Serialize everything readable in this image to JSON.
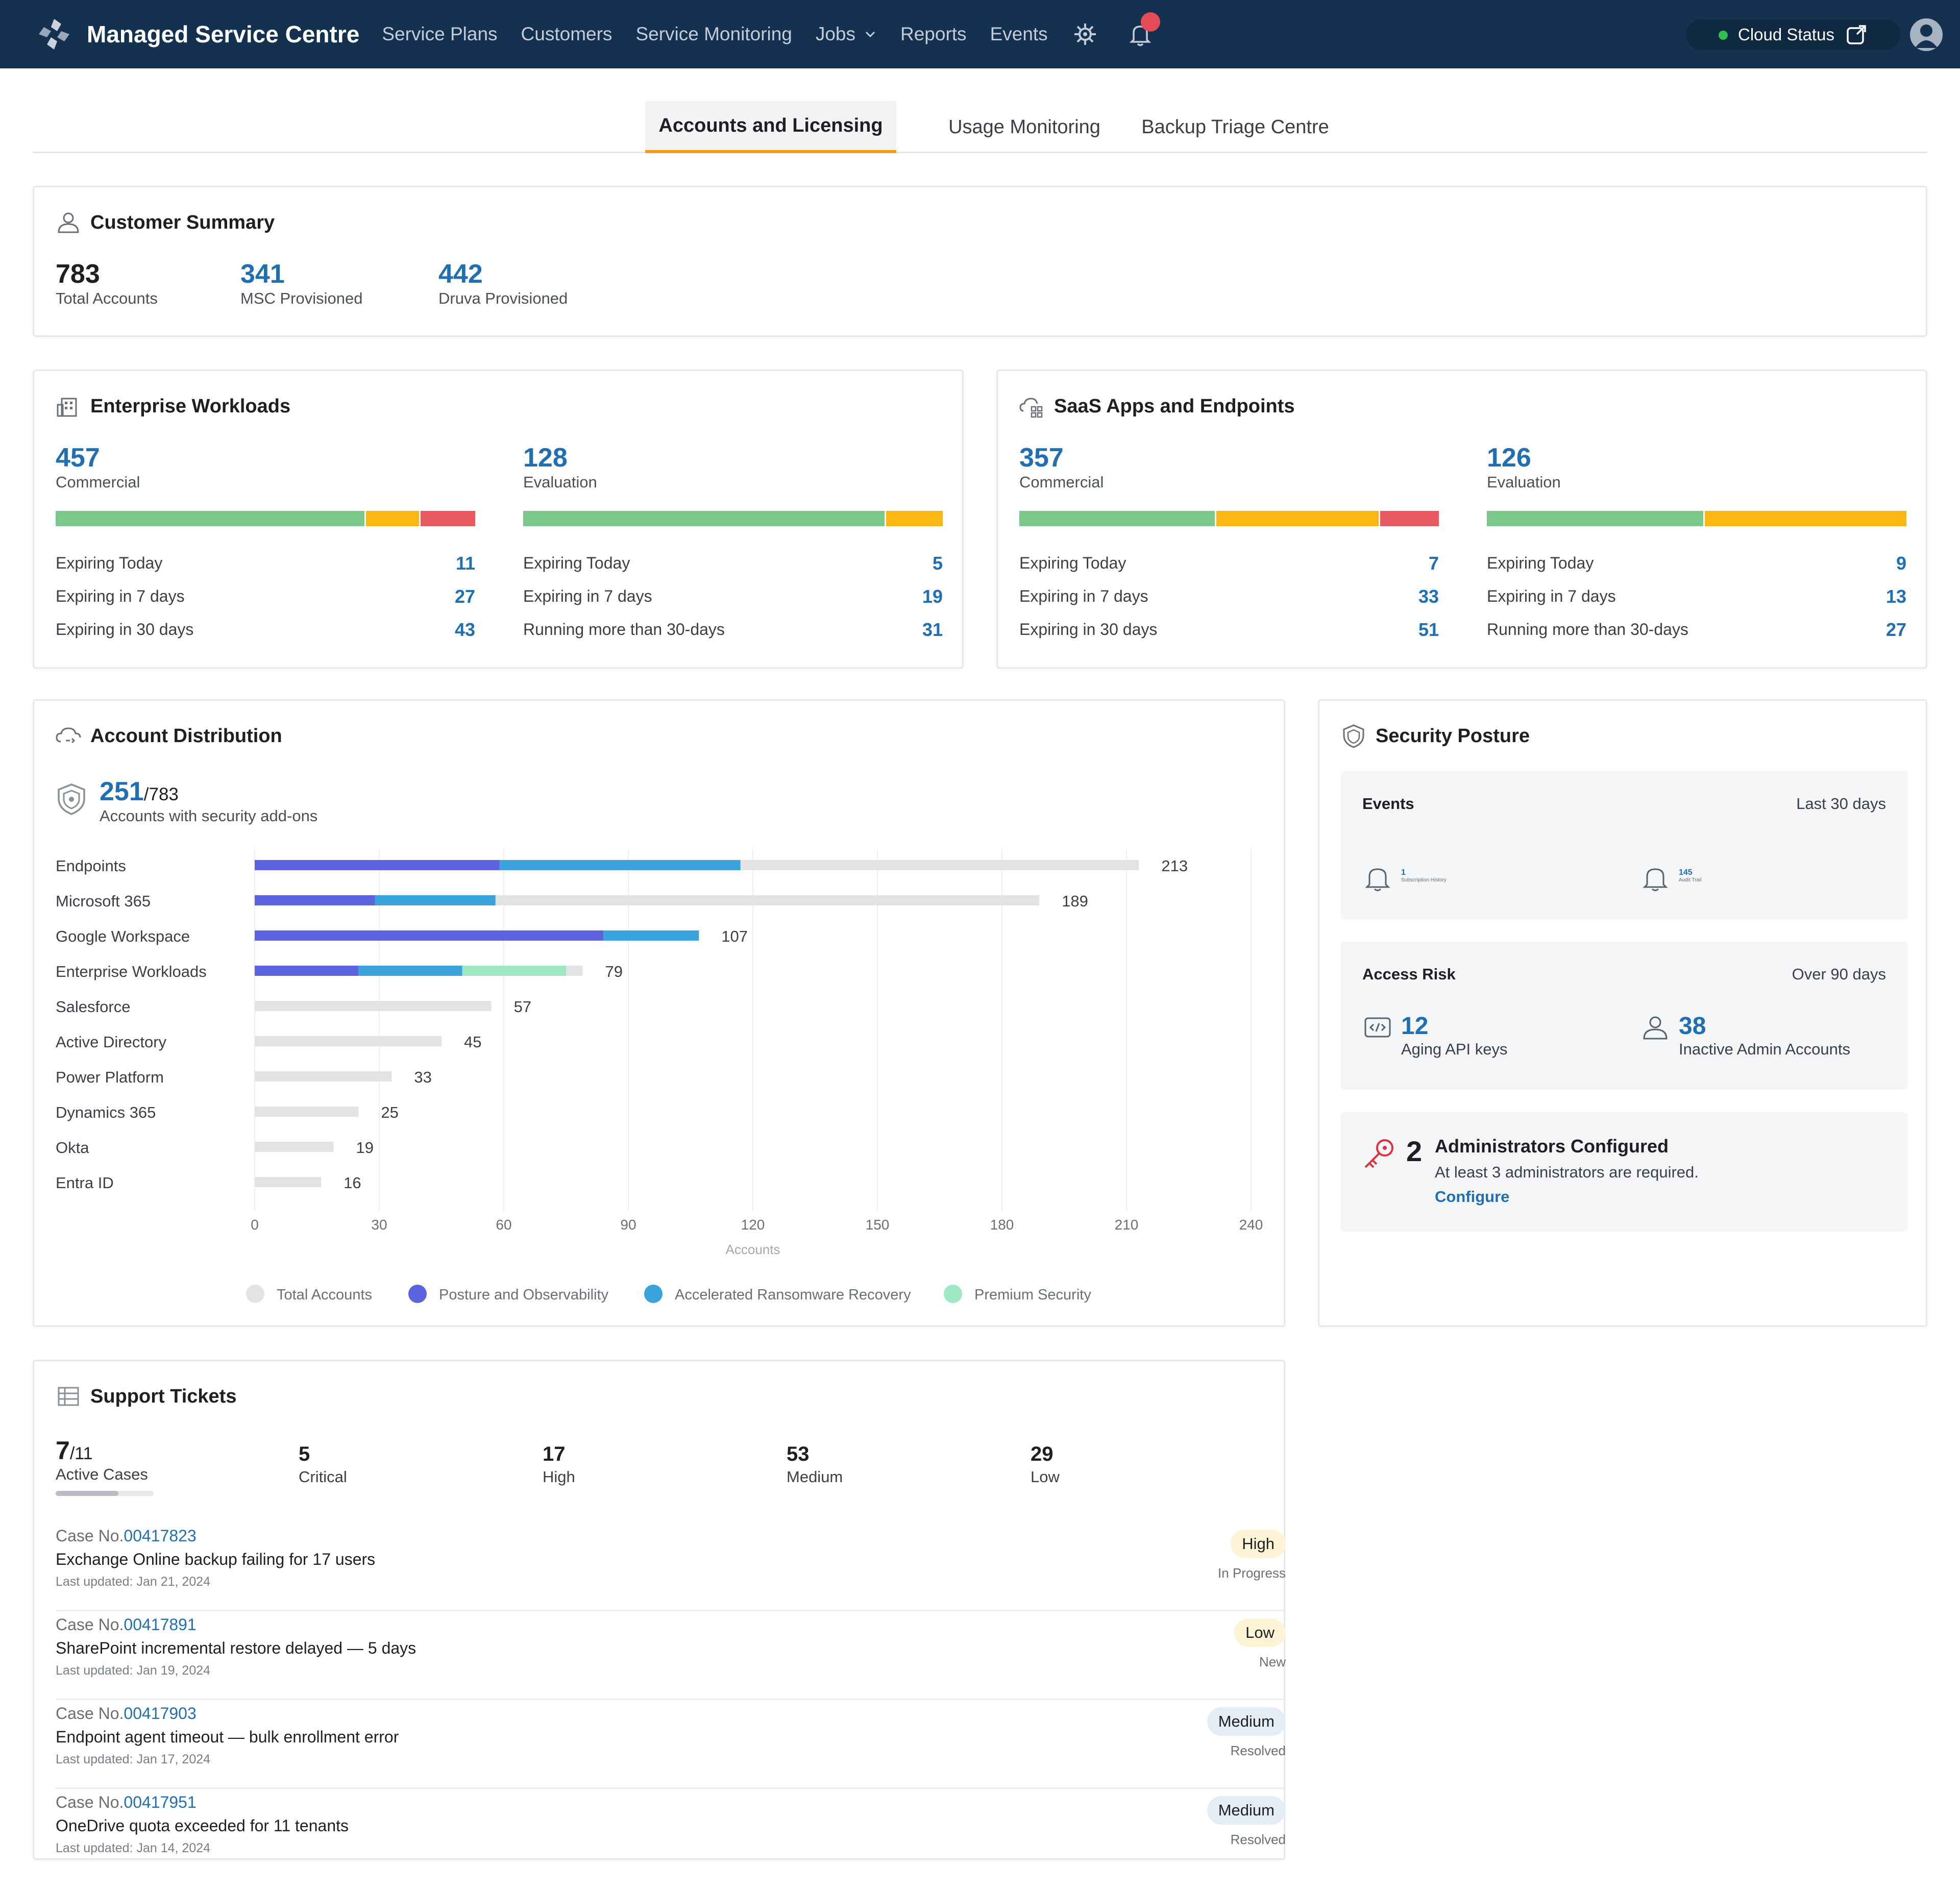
{
  "app": {
    "title": "Managed Service Centre",
    "nav": [
      "Service Plans",
      "Customers",
      "Service Monitoring",
      "Jobs",
      "Reports",
      "Events"
    ],
    "cloud_status": "Cloud Status",
    "notification_badge": true,
    "colors": {
      "topbar": "#14314f",
      "accent": "#f39b1b",
      "link": "#1f6fb2",
      "status_ok": "#2fbf4b",
      "badge": "#e44b56"
    },
    "icons": [
      "logo-icon",
      "chevron-down-icon",
      "gear-icon",
      "bell-icon",
      "external-link-icon",
      "user-avatar-icon"
    ]
  },
  "tabs": [
    {
      "label": "Accounts and Licensing",
      "active": true
    },
    {
      "label": "Usage Monitoring",
      "active": false
    },
    {
      "label": "Backup Triage Centre",
      "active": false
    }
  ],
  "customer_summary": {
    "title": "Customer Summary",
    "stats": [
      {
        "value": "783",
        "label": "Total Accounts"
      },
      {
        "value": "341",
        "label": "MSC Provisioned"
      },
      {
        "value": "442",
        "label": "Druva Provisioned"
      }
    ]
  },
  "enterprise_workloads": {
    "title": "Enterprise Workloads",
    "commercial": {
      "value": "457",
      "label": "Commercial",
      "bar_fractions": {
        "green": 0.74,
        "yellow": 0.13,
        "red": 0.13
      },
      "rows": [
        {
          "label": "Expiring Today",
          "value": "11"
        },
        {
          "label": "Expiring in 7 days",
          "value": "27"
        },
        {
          "label": "Expiring in 30 days",
          "value": "43"
        }
      ]
    },
    "evaluation": {
      "value": "128",
      "label": "Evaluation",
      "bar_fractions": {
        "green": 0.865,
        "yellow": 0.135,
        "red": 0
      },
      "rows": [
        {
          "label": "Expiring Today",
          "value": "5"
        },
        {
          "label": "Expiring in 7 days",
          "value": "19"
        },
        {
          "label": "Running more than 30-days",
          "value": "31"
        }
      ]
    }
  },
  "saas_apps": {
    "title": "SaaS Apps and Endpoints",
    "commercial": {
      "value": "357",
      "label": "Commercial",
      "bar_fractions": {
        "green": 0.47,
        "yellow": 0.39,
        "red": 0.14
      },
      "rows": [
        {
          "label": "Expiring Today",
          "value": "7"
        },
        {
          "label": "Expiring in 7 days",
          "value": "33"
        },
        {
          "label": "Expiring in 30 days",
          "value": "51"
        }
      ]
    },
    "evaluation": {
      "value": "126",
      "label": "Evaluation",
      "bar_fractions": {
        "green": 0.52,
        "yellow": 0.48,
        "red": 0
      },
      "rows": [
        {
          "label": "Expiring Today",
          "value": "9"
        },
        {
          "label": "Expiring in 7 days",
          "value": "13"
        },
        {
          "label": "Running more than 30-days",
          "value": "27"
        }
      ]
    }
  },
  "account_distribution": {
    "title": "Account Distribution",
    "security_addons": {
      "value": "251",
      "total": "/783",
      "label": "Accounts with security add-ons"
    }
  },
  "chart_data": {
    "type": "bar",
    "orientation": "horizontal",
    "categories": [
      "Endpoints",
      "Microsoft 365",
      "Google Workspace",
      "Enterprise Workloads",
      "Salesforce",
      "Active Directory",
      "Power Platform",
      "Dynamics 365",
      "Okta",
      "Entra ID"
    ],
    "series": [
      {
        "name": "Total Accounts",
        "color": "#e2e3e5",
        "values": [
          213,
          189,
          107,
          79,
          57,
          45,
          33,
          25,
          19,
          16
        ]
      },
      {
        "name": "Posture and Observability",
        "color": "#5b63df",
        "values": [
          59,
          29,
          84,
          25,
          0,
          0,
          0,
          0,
          0,
          0
        ]
      },
      {
        "name": "Accelerated Ransomware Recovery",
        "color": "#3aa3dc",
        "values": [
          58,
          29,
          23,
          25,
          0,
          0,
          0,
          0,
          0,
          0
        ]
      },
      {
        "name": "Premium Security",
        "color": "#9ee8c4",
        "values": [
          0,
          0,
          0,
          25,
          0,
          0,
          0,
          0,
          0,
          0
        ]
      }
    ],
    "total_labels": [
      "213",
      "189",
      "107",
      "79",
      "57",
      "45",
      "33",
      "25",
      "19",
      "16"
    ],
    "x_ticks": [
      "0",
      "30",
      "60",
      "90",
      "120",
      "150",
      "180",
      "210",
      "240"
    ],
    "xlim": [
      0,
      240
    ],
    "xlabel": "Accounts",
    "grid": true,
    "legend_position": "bottom"
  },
  "security_posture": {
    "title": "Security Posture",
    "events": {
      "title": "Events",
      "period": "Last 30 days",
      "items": [
        {
          "value": "1",
          "label": "Subscription History"
        },
        {
          "value": "145",
          "label": "Audit Trail"
        }
      ]
    },
    "access_risk": {
      "title": "Access Risk",
      "period": "Over 90 days",
      "items": [
        {
          "value": "12",
          "label": "Aging API keys"
        },
        {
          "value": "38",
          "label": "Inactive Admin Accounts"
        }
      ]
    },
    "admins": {
      "count": "2",
      "title": "Administrators Configured",
      "note": "At least 3 administrators are required.",
      "link": "Configure"
    }
  },
  "support_tickets": {
    "title": "Support Tickets",
    "active": {
      "value": "7",
      "total": "/11",
      "label": "Active Cases",
      "fraction": 0.64
    },
    "stats": [
      {
        "value": "5",
        "label": "Critical"
      },
      {
        "value": "17",
        "label": "High"
      },
      {
        "value": "53",
        "label": "Medium"
      },
      {
        "value": "29",
        "label": "Low"
      }
    ],
    "case_prefix": "Case No.",
    "tickets": [
      {
        "case": "00417823",
        "title": "Exchange Online backup failing for 17 users",
        "updated": "Last updated: Jan 21, 2024",
        "priority": "High",
        "status": "In Progress"
      },
      {
        "case": "00417891",
        "title": "SharePoint incremental restore delayed — 5 days",
        "updated": "Last updated: Jan 19, 2024",
        "priority": "Low",
        "status": "New"
      },
      {
        "case": "00417903",
        "title": "Endpoint agent timeout — bulk enrollment error",
        "updated": "Last updated: Jan 17, 2024",
        "priority": "Medium",
        "status": "Resolved"
      },
      {
        "case": "00417951",
        "title": "OneDrive quota exceeded for 11 tenants",
        "updated": "Last updated: Jan 14, 2024",
        "priority": "Medium",
        "status": "Resolved"
      }
    ]
  }
}
